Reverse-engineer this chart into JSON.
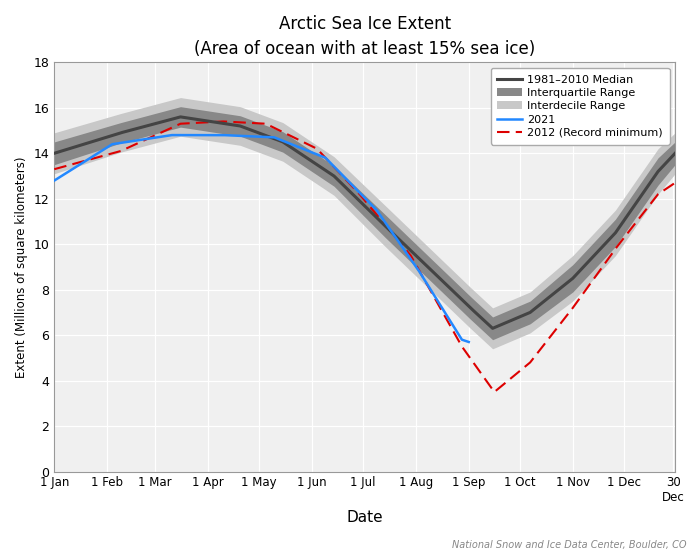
{
  "title": "Arctic Sea Ice Extent",
  "subtitle": "(Area of ocean with at least 15% sea ice)",
  "xlabel": "Date",
  "ylabel": "Extent (Millions of square kilometers)",
  "ylim": [
    0,
    18
  ],
  "yticks": [
    0,
    2,
    4,
    6,
    8,
    10,
    12,
    14,
    16,
    18
  ],
  "background_color": "#f0f0f0",
  "median_color": "#444444",
  "iqr_color": "#888888",
  "idr_color": "#c8c8c8",
  "line_2021_color": "#2288ff",
  "line_2012_color": "#dd0000",
  "footer_text": "National Snow and Ice Data Center, Boulder, CO",
  "legend_labels": [
    "1981–2010 Median",
    "Interquartile Range",
    "Interdecile Range",
    "2021",
    "2012 (Record minimum)"
  ]
}
